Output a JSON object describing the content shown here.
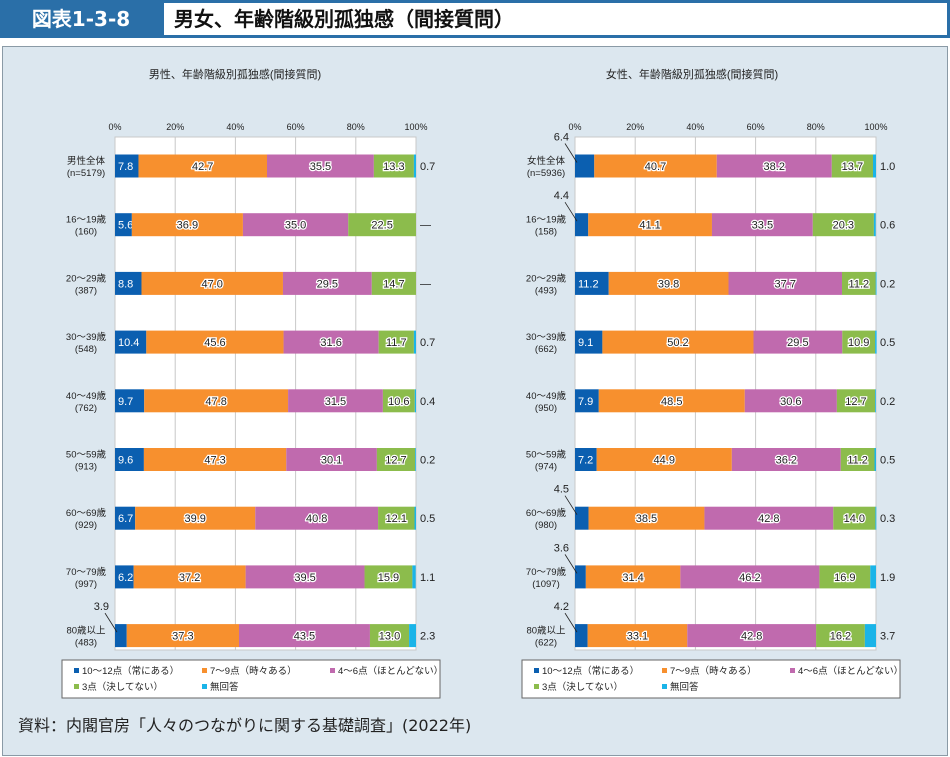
{
  "header": {
    "figure_label": "図表1-3-8",
    "title": "男女、年齢階級別孤独感（間接質問）"
  },
  "source": "資料：内閣官房「人々のつながりに関する基礎調査」(2022年)",
  "colors": {
    "always": "#0b5fb0",
    "sometimes": "#f7902e",
    "rarely": "#c06aae",
    "never": "#8cbc4c",
    "no_answer": "#1ab4e8"
  },
  "chart_data": [
    {
      "type": "bar",
      "orientation": "horizontal-stacked-100",
      "title": "男性、年齢階級別孤独感(間接質問)",
      "xlim": [
        0,
        100
      ],
      "x_ticks": [
        "0%",
        "20%",
        "40%",
        "60%",
        "80%",
        "100%"
      ],
      "grid": true,
      "legend": "bottom",
      "categories": [
        {
          "label": "男性全体",
          "n": "(n=5179)"
        },
        {
          "label": "16～19歳",
          "n": "(160)"
        },
        {
          "label": "20～29歳",
          "n": "(387)"
        },
        {
          "label": "30～39歳",
          "n": "(548)"
        },
        {
          "label": "40～49歳",
          "n": "(762)"
        },
        {
          "label": "50～59歳",
          "n": "(913)"
        },
        {
          "label": "60～69歳",
          "n": "(929)"
        },
        {
          "label": "70～79歳",
          "n": "(997)"
        },
        {
          "label": "80歳以上",
          "n": "(483)"
        }
      ],
      "series": [
        {
          "name": "10～12点（常にある）",
          "key": "always",
          "values": [
            7.8,
            5.6,
            8.8,
            10.4,
            9.7,
            9.6,
            6.7,
            6.2,
            3.9
          ]
        },
        {
          "name": "7～9点（時々ある）",
          "key": "sometimes",
          "values": [
            42.7,
            36.9,
            47.0,
            45.6,
            47.8,
            47.3,
            39.9,
            37.2,
            37.3
          ]
        },
        {
          "name": "4～6点（ほとんどない）",
          "key": "rarely",
          "values": [
            35.5,
            35.0,
            29.5,
            31.6,
            31.5,
            30.1,
            40.8,
            39.5,
            43.5
          ]
        },
        {
          "name": "3点（決してない）",
          "key": "never",
          "values": [
            13.3,
            22.5,
            14.7,
            11.7,
            10.6,
            12.7,
            12.1,
            15.9,
            13.0
          ]
        },
        {
          "name": "無回答",
          "key": "no_answer",
          "values": [
            0.7,
            null,
            null,
            0.7,
            0.4,
            0.2,
            0.5,
            1.1,
            2.3
          ]
        }
      ],
      "no_answer_labels": [
        "0.7",
        "—",
        "—",
        "0.7",
        "0.4",
        "0.2",
        "0.5",
        "1.1",
        "2.3"
      ],
      "outside_first_labels": [
        null,
        null,
        null,
        null,
        null,
        null,
        null,
        null,
        "3.9"
      ]
    },
    {
      "type": "bar",
      "orientation": "horizontal-stacked-100",
      "title": "女性、年齢階級別孤独感(間接質問)",
      "xlim": [
        0,
        100
      ],
      "x_ticks": [
        "0%",
        "20%",
        "40%",
        "60%",
        "80%",
        "100%"
      ],
      "grid": true,
      "legend": "bottom",
      "categories": [
        {
          "label": "女性全体",
          "n": "(n=5936)"
        },
        {
          "label": "16～19歳",
          "n": "(158)"
        },
        {
          "label": "20～29歳",
          "n": "(493)"
        },
        {
          "label": "30～39歳",
          "n": "(662)"
        },
        {
          "label": "40～49歳",
          "n": "(950)"
        },
        {
          "label": "50～59歳",
          "n": "(974)"
        },
        {
          "label": "60～69歳",
          "n": "(980)"
        },
        {
          "label": "70～79歳",
          "n": "(1097)"
        },
        {
          "label": "80歳以上",
          "n": "(622)"
        }
      ],
      "series": [
        {
          "name": "10～12点（常にある）",
          "key": "always",
          "values": [
            6.4,
            4.4,
            11.2,
            9.1,
            7.9,
            7.2,
            4.5,
            3.6,
            4.2
          ]
        },
        {
          "name": "7～9点（時々ある）",
          "key": "sometimes",
          "values": [
            40.7,
            41.1,
            39.8,
            50.2,
            48.5,
            44.9,
            38.5,
            31.4,
            33.1
          ]
        },
        {
          "name": "4～6点（ほとんどない）",
          "key": "rarely",
          "values": [
            38.2,
            33.5,
            37.7,
            29.5,
            30.6,
            36.2,
            42.8,
            46.2,
            42.8
          ]
        },
        {
          "name": "3点（決してない）",
          "key": "never",
          "values": [
            13.7,
            20.3,
            11.2,
            10.9,
            12.7,
            11.2,
            14.0,
            16.9,
            16.2
          ]
        },
        {
          "name": "無回答",
          "key": "no_answer",
          "values": [
            1.0,
            0.6,
            0.2,
            0.5,
            0.2,
            0.5,
            0.3,
            1.9,
            3.7
          ]
        }
      ],
      "no_answer_labels": [
        "1.0",
        "0.6",
        "0.2",
        "0.5",
        "0.2",
        "0.5",
        "0.3",
        "1.9",
        "3.7"
      ],
      "outside_first_labels": [
        "6.4",
        "4.4",
        null,
        null,
        null,
        null,
        "4.5",
        "3.6",
        "4.2"
      ]
    }
  ]
}
